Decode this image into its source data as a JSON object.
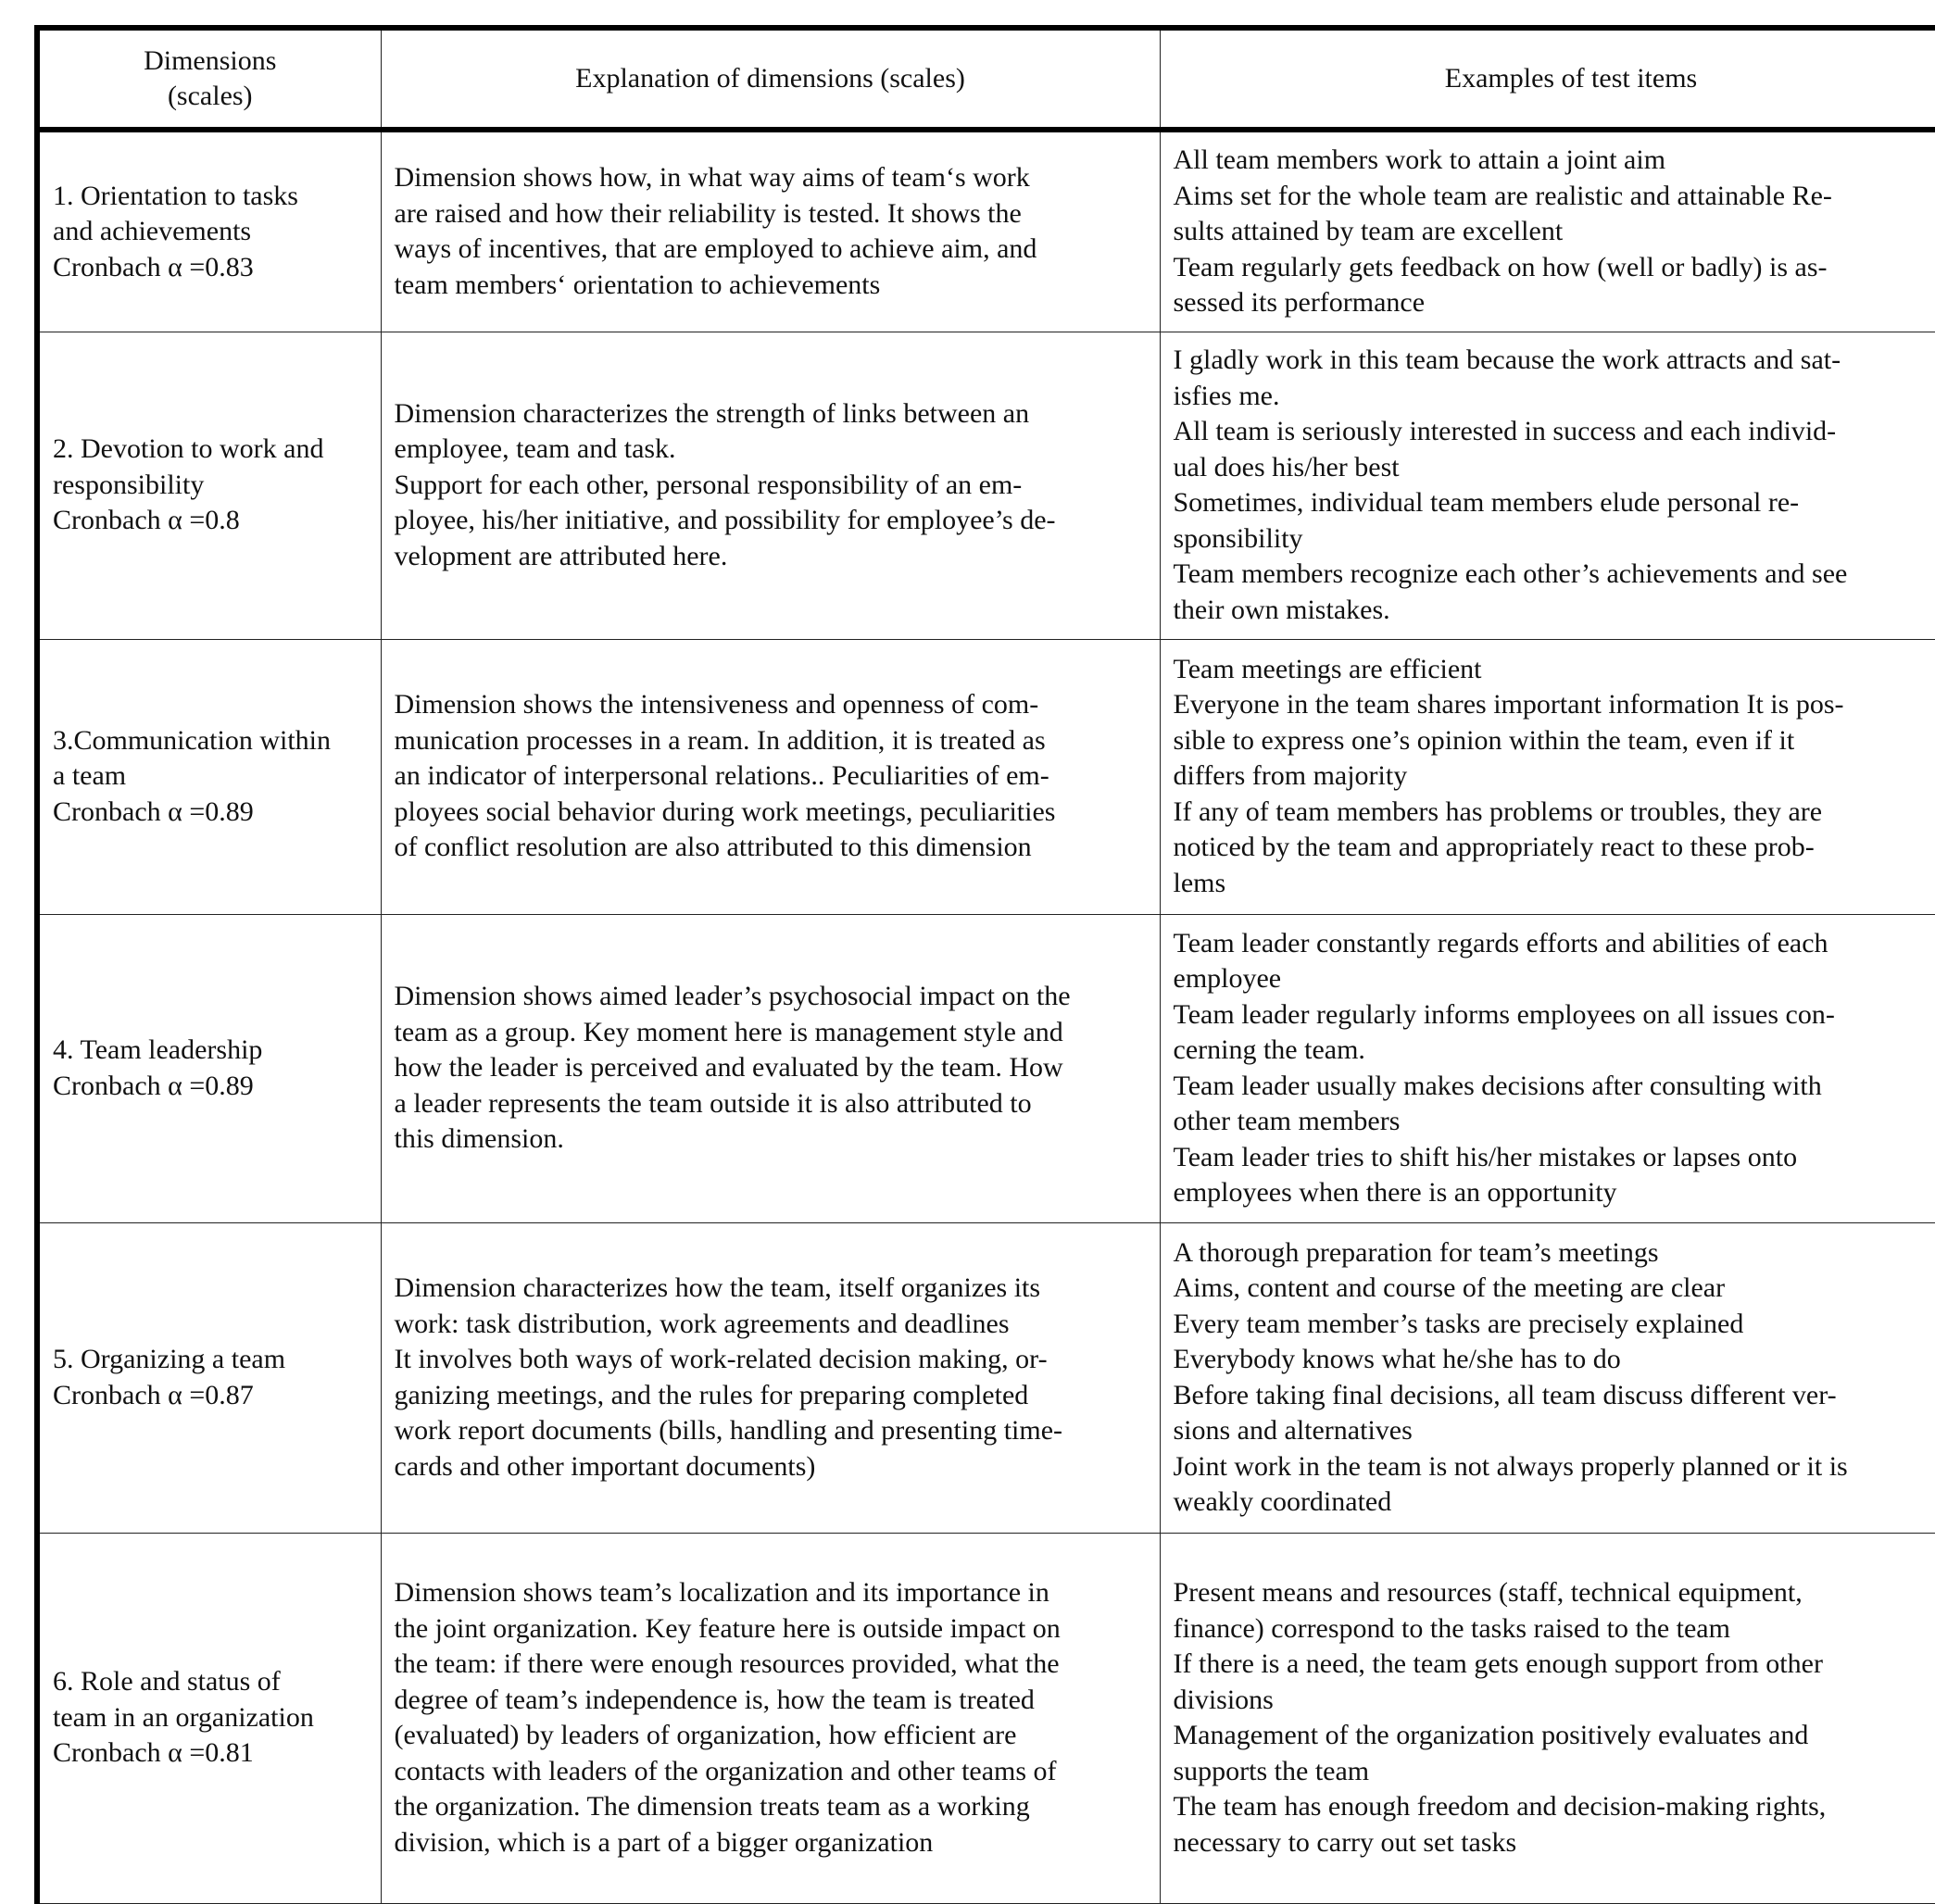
{
  "header": {
    "col1": [
      "Dimensions",
      "(scales)"
    ],
    "col2": [
      "Explanation of dimensions (scales)"
    ],
    "col3": [
      "Examples of test items"
    ]
  },
  "rows": [
    {
      "dimension": [
        "1. Orientation to tasks",
        "and achievements",
        "Cronbach α =0.83"
      ],
      "explanation": [
        "Dimension shows how, in what way aims of team‘s work",
        "are raised and how their reliability is tested. It shows the",
        "ways of incentives, that are employed to achieve aim, and",
        "team members‘ orientation to achievements"
      ],
      "examples": [
        "All team members work to attain a joint aim",
        "Aims set for the whole team are realistic and attainable Re-",
        "sults attained by team are excellent",
        "Team regularly gets feedback on how (well or badly) is as-",
        "sessed its performance"
      ]
    },
    {
      "dimension": [
        "2. Devotion to work and",
        "responsibility",
        "Cronbach α =0.8"
      ],
      "explanation": [
        "Dimension characterizes the strength of links between an",
        "employee, team and task.",
        "Support for each other, personal responsibility of an em-",
        "ployee, his/her initiative, and possibility for employee’s de-",
        "velopment are attributed here."
      ],
      "examples": [
        "I gladly work in this team because the work attracts and sat-",
        "isfies me.",
        "All team is seriously interested in success and each individ-",
        "ual does his/her best",
        "Sometimes, individual team members elude personal re-",
        "sponsibility",
        "Team members recognize each other’s achievements and see",
        "their own mistakes."
      ]
    },
    {
      "dimension": [
        "3.Communication within",
        "a team",
        "Cronbach α =0.89"
      ],
      "explanation": [
        "Dimension shows the intensiveness and openness of com-",
        "munication processes in a ream. In addition, it is treated as",
        "an indicator of interpersonal relations.. Peculiarities of em-",
        "ployees social behavior during work meetings, peculiarities",
        "of conflict resolution are also attributed to this dimension"
      ],
      "examples": [
        "Team meetings are efficient",
        "Everyone in the team shares important information It is pos-",
        "sible to express one’s opinion within the team, even if it",
        "differs from majority",
        "If any of team members has problems or troubles, they are",
        "noticed by the team and appropriately react to these prob-",
        "lems"
      ]
    },
    {
      "dimension": [
        "4. Team leadership",
        "Cronbach α =0.89"
      ],
      "explanation": [
        "Dimension shows aimed leader’s psychosocial impact on the",
        "team as a group. Key moment here is management style and",
        "how the leader is perceived and evaluated by the team. How",
        "a leader represents the team outside it is also attributed to",
        "this dimension."
      ],
      "examples": [
        "Team leader constantly regards efforts and abilities of each",
        "employee",
        "Team leader regularly informs employees on all issues con-",
        "cerning the team.",
        "Team leader usually makes decisions after consulting with",
        "other team members",
        "Team leader tries to shift his/her mistakes or lapses onto",
        "employees when there is an opportunity"
      ]
    },
    {
      "dimension": [
        "5. Organizing a team",
        "Cronbach α =0.87"
      ],
      "explanation": [
        "Dimension characterizes how the team, itself organizes its",
        "work: task distribution, work agreements and deadlines",
        "It involves both ways of work-related decision making, or-",
        "ganizing meetings, and the rules for preparing completed",
        "work report documents (bills, handling and presenting time-",
        "cards and other important documents)"
      ],
      "examples": [
        "A thorough preparation for team’s meetings",
        "Aims, content and course of the meeting are clear",
        "Every team member’s tasks are precisely explained",
        "Everybody knows what he/she has to do",
        "Before taking final decisions, all team discuss different ver-",
        "sions and alternatives",
        "Joint work in the team is not always properly planned or it is",
        "weakly coordinated"
      ]
    },
    {
      "dimension": [
        "6. Role and status of",
        "team in an organization",
        "Cronbach α =0.81"
      ],
      "explanation": [
        "Dimension shows team’s localization and its importance in",
        "the joint organization. Key feature here is outside impact on",
        "the team: if there were enough resources provided, what the",
        "degree of team’s independence is, how the team is treated",
        "(evaluated) by leaders of organization, how efficient are",
        "contacts with leaders of the organization and other teams of",
        "the organization. The dimension treats team as a working",
        "division, which is a part of a bigger organization"
      ],
      "examples": [
        "Present means and resources (staff, technical equipment,",
        "finance) correspond to the tasks raised to the team",
        "If there is a need, the team gets enough support from other",
        "divisions",
        "Management of the organization positively evaluates and",
        "supports the team",
        "The team has enough freedom and decision-making rights,",
        "necessary to carry out set tasks"
      ]
    }
  ]
}
